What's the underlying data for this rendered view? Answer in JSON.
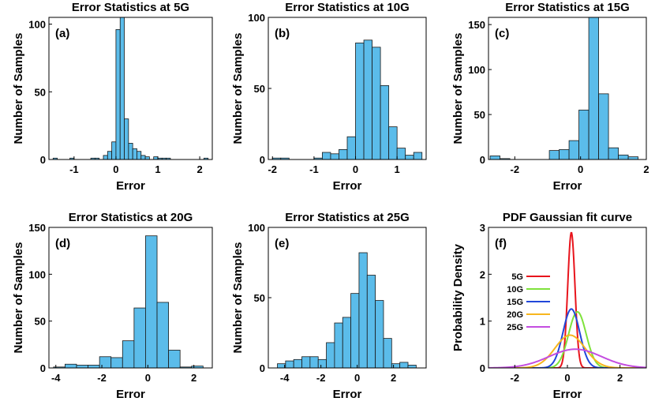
{
  "chart_data": [
    {
      "type": "bar",
      "panel_label": "(a)",
      "title": "Error Statistics at 5G",
      "xlabel": "Error",
      "ylabel": "Number of Samples",
      "xlim": [
        -1.6,
        2.3
      ],
      "ylim": [
        0,
        105
      ],
      "xticks": [
        -1,
        0,
        1,
        2
      ],
      "yticks": [
        0,
        50,
        100
      ],
      "bin_edges": [
        -1.5,
        -1.4,
        -1.3,
        -1.2,
        -1.1,
        -1.0,
        -0.9,
        -0.8,
        -0.7,
        -0.6,
        -0.5,
        -0.4,
        -0.3,
        -0.2,
        -0.1,
        0.0,
        0.1,
        0.2,
        0.3,
        0.4,
        0.5,
        0.6,
        0.7,
        0.8,
        0.9,
        1.0,
        1.1,
        1.2,
        1.3,
        1.4,
        1.5,
        1.6,
        1.7,
        1.8,
        1.9,
        2.0,
        2.1,
        2.2
      ],
      "values": [
        1,
        0,
        0,
        0,
        1,
        0,
        0,
        0,
        0,
        1,
        1,
        0,
        3,
        6,
        13,
        96,
        105,
        30,
        12,
        8,
        6,
        3,
        2,
        0,
        2,
        1,
        1,
        1,
        0,
        0,
        0,
        0,
        0,
        0,
        0,
        0,
        1
      ],
      "color": "#5bbcea"
    },
    {
      "type": "bar",
      "panel_label": "(b)",
      "title": "Error Statistics at 10G",
      "xlabel": "Error",
      "ylabel": "Number of Samples",
      "xlim": [
        -2.1,
        1.7
      ],
      "ylim": [
        0,
        100
      ],
      "xticks": [
        -2,
        -1,
        0,
        1
      ],
      "yticks": [
        0,
        50,
        100
      ],
      "bin_edges": [
        -2.0,
        -1.8,
        -1.6,
        -1.4,
        -1.2,
        -1.0,
        -0.8,
        -0.6,
        -0.4,
        -0.2,
        0.0,
        0.2,
        0.4,
        0.6,
        0.8,
        1.0,
        1.2,
        1.4,
        1.6
      ],
      "values": [
        1,
        1,
        0,
        0,
        0,
        1,
        5,
        4,
        7,
        16,
        82,
        84,
        79,
        52,
        23,
        8,
        3,
        5
      ],
      "color": "#5bbcea"
    },
    {
      "type": "bar",
      "panel_label": "(c)",
      "title": "Error Statistics at 15G",
      "xlabel": "Error",
      "ylabel": "Number of Samples",
      "xlim": [
        -2.8,
        2.0
      ],
      "ylim": [
        0,
        158
      ],
      "xticks": [
        -2,
        0,
        2
      ],
      "yticks": [
        0,
        50,
        100,
        150
      ],
      "bin_edges": [
        -2.75,
        -2.45,
        -2.15,
        -1.85,
        -1.55,
        -1.25,
        -0.95,
        -0.65,
        -0.35,
        -0.05,
        0.25,
        0.55,
        0.85,
        1.15,
        1.45,
        1.75
      ],
      "values": [
        4,
        1,
        0,
        0,
        0,
        0,
        10,
        11,
        21,
        55,
        158,
        73,
        13,
        5,
        3
      ],
      "color": "#5bbcea"
    },
    {
      "type": "bar",
      "panel_label": "(d)",
      "title": "Error Statistics at 20G",
      "xlabel": "Error",
      "ylabel": "Number of Samples",
      "xlim": [
        -4.3,
        2.8
      ],
      "ylim": [
        0,
        150
      ],
      "xticks": [
        -4,
        -2,
        0,
        2
      ],
      "yticks": [
        0,
        50,
        100,
        150
      ],
      "bin_edges": [
        -4.1,
        -3.6,
        -3.1,
        -2.6,
        -2.1,
        -1.6,
        -1.1,
        -0.6,
        -0.1,
        0.4,
        0.9,
        1.4,
        1.9,
        2.4
      ],
      "values": [
        1,
        4,
        3,
        3,
        12,
        11,
        29,
        64,
        141,
        70,
        19,
        1,
        2
      ],
      "color": "#5bbcea"
    },
    {
      "type": "bar",
      "panel_label": "(e)",
      "title": "Error Statistics at 25G",
      "xlabel": "Error",
      "ylabel": "Number of Samples",
      "xlim": [
        -4.9,
        3.8
      ],
      "ylim": [
        0,
        100
      ],
      "xticks": [
        -4,
        -2,
        0,
        2
      ],
      "yticks": [
        0,
        50,
        100
      ],
      "bin_edges": [
        -4.4,
        -3.95,
        -3.5,
        -3.05,
        -2.6,
        -2.15,
        -1.7,
        -1.25,
        -0.8,
        -0.35,
        0.1,
        0.55,
        1.0,
        1.45,
        1.9,
        2.35,
        2.8,
        3.25
      ],
      "values": [
        3,
        5,
        6,
        8,
        8,
        6,
        18,
        32,
        36,
        53,
        82,
        66,
        48,
        21,
        3,
        4,
        2
      ],
      "color": "#5bbcea"
    },
    {
      "type": "line",
      "panel_label": "(f)",
      "title": "PDF Gaussian fit curve",
      "xlabel": "Error",
      "ylabel": "Probability Density",
      "xlim": [
        -3,
        3
      ],
      "ylim": [
        0,
        3
      ],
      "xticks": [
        -2,
        0,
        2
      ],
      "yticks": [
        0,
        1,
        2,
        3
      ],
      "legend_position": "left",
      "series": [
        {
          "name": "5G",
          "color": "#e8141c",
          "mu": 0.15,
          "sigma": 0.138
        },
        {
          "name": "10G",
          "color": "#7fe23c",
          "mu": 0.38,
          "sigma": 0.333
        },
        {
          "name": "15G",
          "color": "#2147d9",
          "mu": 0.15,
          "sigma": 0.317
        },
        {
          "name": "20G",
          "color": "#f7b61e",
          "mu": 0.1,
          "sigma": 0.57
        },
        {
          "name": "25G",
          "color": "#c44de0",
          "mu": 0.3,
          "sigma": 0.997
        }
      ]
    }
  ]
}
